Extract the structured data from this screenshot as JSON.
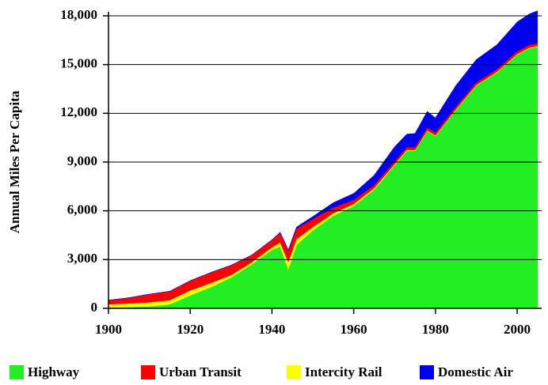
{
  "chart_data": {
    "type": "area",
    "stacked": true,
    "y_label": "Annual Miles Per Capita",
    "x": [
      1900,
      1905,
      1910,
      1915,
      1920,
      1925,
      1930,
      1935,
      1940,
      1942,
      1944,
      1946,
      1950,
      1955,
      1960,
      1965,
      1970,
      1973,
      1975,
      1978,
      1980,
      1985,
      1990,
      1995,
      2000,
      2003,
      2005
    ],
    "series": [
      {
        "name": "Highway",
        "color": "#22ee22",
        "values": [
          50,
          80,
          120,
          250,
          800,
          1300,
          1900,
          2700,
          3600,
          3800,
          2400,
          3900,
          4800,
          5700,
          6300,
          7300,
          8800,
          9700,
          9700,
          10900,
          10600,
          12200,
          13700,
          14500,
          15600,
          16000,
          16100
        ]
      },
      {
        "name": "Urban Transit",
        "color": "#ff0000",
        "values": [
          250,
          350,
          500,
          550,
          600,
          650,
          600,
          450,
          450,
          600,
          700,
          650,
          500,
          350,
          250,
          200,
          180,
          170,
          170,
          180,
          180,
          170,
          170,
          170,
          180,
          180,
          170
        ]
      },
      {
        "name": "Intercity Rail",
        "color": "#ffff00",
        "values": [
          200,
          220,
          250,
          250,
          300,
          250,
          150,
          120,
          150,
          250,
          450,
          350,
          200,
          150,
          120,
          90,
          60,
          50,
          40,
          40,
          40,
          40,
          40,
          40,
          40,
          40,
          40
        ]
      },
      {
        "name": "Domestic Air",
        "color": "#0000ee",
        "values": [
          0,
          0,
          0,
          0,
          0,
          0,
          0,
          0,
          20,
          30,
          50,
          100,
          150,
          300,
          400,
          600,
          900,
          800,
          850,
          1000,
          900,
          1300,
          1400,
          1500,
          1800,
          1900,
          2000
        ]
      }
    ],
    "stack_order": [
      0,
      2,
      1,
      3
    ],
    "xlim": [
      1900,
      2006
    ],
    "xticks": [
      1900,
      1920,
      1940,
      1960,
      1980,
      2000
    ],
    "ylim": [
      0,
      18000
    ],
    "yticks": [
      0,
      {
        "value": 3000,
        "label": "3,000"
      },
      {
        "value": 6000,
        "label": "6,000"
      },
      {
        "value": 9000,
        "label": "9,000"
      },
      {
        "value": 12000,
        "label": "12,000"
      },
      {
        "value": 15000,
        "label": "15,000"
      },
      {
        "value": 18000,
        "label": "18,000"
      }
    ],
    "grid": true,
    "legend": "bottom"
  }
}
